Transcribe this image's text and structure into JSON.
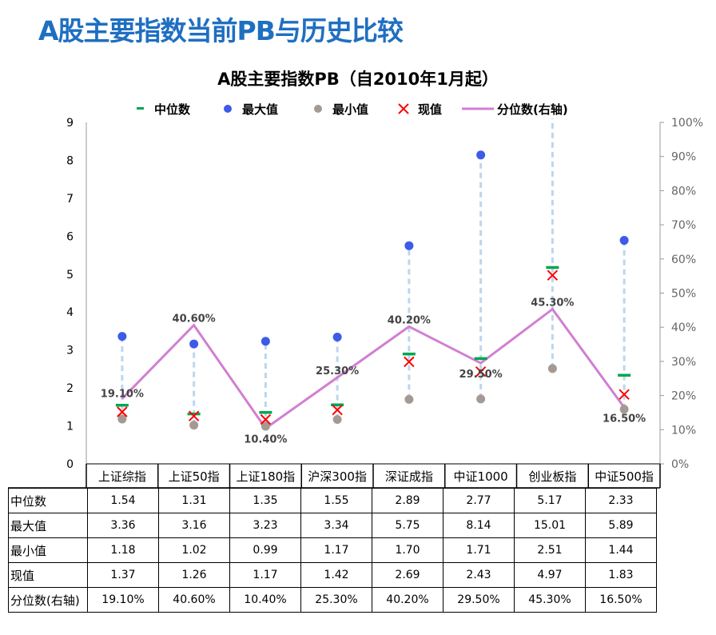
{
  "page_title": "A股主要指数当前PB与历史比较",
  "chart_data": {
    "type": "line",
    "title": "A股主要指数PB（自2010年1月起）",
    "categories": [
      "上证综指",
      "上证50指",
      "上证180指",
      "沪深300指",
      "深证成指",
      "中证1000",
      "创业板指",
      "中证500指"
    ],
    "series": [
      {
        "name": "中位数",
        "values": [
          1.54,
          1.31,
          1.35,
          1.55,
          2.89,
          2.77,
          5.17,
          2.33
        ],
        "color": "#00a651"
      },
      {
        "name": "最大值",
        "values": [
          3.36,
          3.16,
          3.23,
          3.34,
          5.75,
          8.14,
          15.01,
          5.89
        ],
        "color": "#3d5be8"
      },
      {
        "name": "最小值",
        "values": [
          1.18,
          1.02,
          0.99,
          1.17,
          1.7,
          1.71,
          2.51,
          1.44
        ],
        "color": "#a59a93"
      },
      {
        "name": "现值",
        "values": [
          1.37,
          1.26,
          1.17,
          1.42,
          2.69,
          2.43,
          4.97,
          1.83
        ],
        "color": "#ff0000"
      },
      {
        "name": "分位数(右轴)",
        "values": [
          19.1,
          40.6,
          10.4,
          25.3,
          40.2,
          29.5,
          45.3,
          16.5
        ],
        "color": "#d17fd1"
      }
    ],
    "percent_labels": [
      "19.10%",
      "40.60%",
      "10.40%",
      "25.30%",
      "40.20%",
      "29.50%",
      "45.30%",
      "16.50%"
    ],
    "left_axis": {
      "ylim": [
        0,
        9
      ],
      "ticks": [
        "0",
        "1",
        "2",
        "3",
        "4",
        "5",
        "6",
        "7",
        "8",
        "9"
      ]
    },
    "right_axis": {
      "ylim": [
        0,
        100
      ],
      "ticks": [
        "0%",
        "10%",
        "20%",
        "30%",
        "40%",
        "50%",
        "60%",
        "70%",
        "80%",
        "90%",
        "100%"
      ]
    },
    "legend_position": "top"
  },
  "table": {
    "rows": [
      {
        "label": "中位数",
        "values": [
          "1.54",
          "1.31",
          "1.35",
          "1.55",
          "2.89",
          "2.77",
          "5.17",
          "2.33"
        ]
      },
      {
        "label": "最大值",
        "values": [
          "3.36",
          "3.16",
          "3.23",
          "3.34",
          "5.75",
          "8.14",
          "15.01",
          "5.89"
        ]
      },
      {
        "label": "最小值",
        "values": [
          "1.18",
          "1.02",
          "0.99",
          "1.17",
          "1.70",
          "1.71",
          "2.51",
          "1.44"
        ]
      },
      {
        "label": "现值",
        "values": [
          "1.37",
          "1.26",
          "1.17",
          "1.42",
          "2.69",
          "2.43",
          "4.97",
          "1.83"
        ]
      },
      {
        "label": "分位数(右轴)",
        "values": [
          "19.10%",
          "40.60%",
          "10.40%",
          "25.30%",
          "40.20%",
          "29.50%",
          "45.30%",
          "16.50%"
        ]
      }
    ]
  }
}
